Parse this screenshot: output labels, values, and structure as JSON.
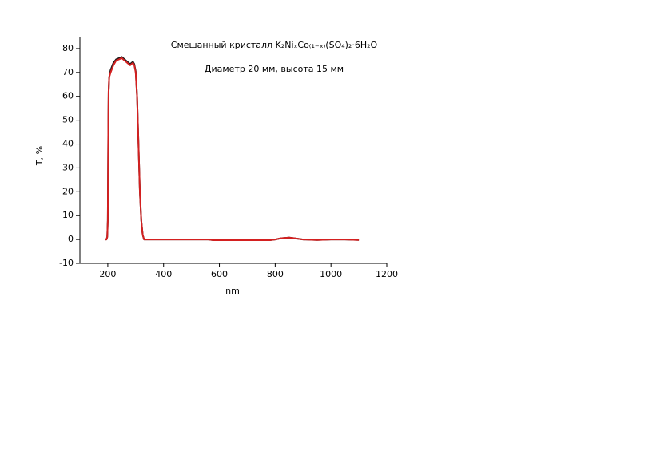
{
  "chart_data": {
    "type": "line",
    "title": "Смешанный кристалл  K₂NiₓCo₍₁₋ₓ₎(SO₄)₂·6H₂O",
    "subtitle": "Диаметр 20 мм, высота 15 мм",
    "x_label": "nm",
    "y_label": "T, %",
    "xlim": [
      100,
      1200
    ],
    "xticks": [
      200,
      400,
      600,
      800,
      1000,
      1200
    ],
    "ylim": [
      -10,
      85
    ],
    "yticks": [
      -10,
      0,
      10,
      20,
      30,
      40,
      50,
      60,
      70,
      80
    ],
    "grid": false,
    "series": [
      {
        "name": "black",
        "color": "#1a1a1a",
        "x": [
          190,
          195,
          198,
          200,
          201,
          202,
          203,
          205,
          210,
          220,
          230,
          240,
          250,
          260,
          270,
          280,
          290,
          295,
          300,
          305,
          310,
          315,
          320,
          325,
          330,
          350,
          400,
          420,
          500,
          560,
          580,
          700,
          780,
          800,
          820,
          850,
          870,
          900,
          950,
          1000,
          1050,
          1100
        ],
        "values": [
          0,
          0,
          1,
          8,
          30,
          50,
          62,
          68,
          71,
          74,
          75.5,
          76,
          76.5,
          75.5,
          74.5,
          73.5,
          74.5,
          73.5,
          70.5,
          60,
          40,
          20,
          8,
          2,
          0,
          0,
          0,
          0,
          0,
          0,
          -0.3,
          -0.3,
          -0.3,
          0,
          0.5,
          0.8,
          0.5,
          0,
          -0.2,
          0,
          0,
          -0.2
        ]
      },
      {
        "name": "red",
        "color": "#d42020",
        "x": [
          190,
          195,
          198,
          200,
          201,
          202,
          203,
          205,
          210,
          220,
          230,
          240,
          250,
          260,
          270,
          280,
          290,
          295,
          300,
          305,
          310,
          315,
          320,
          325,
          330,
          350,
          400,
          420,
          500,
          560,
          580,
          700,
          780,
          800,
          820,
          850,
          870,
          900,
          950,
          1000,
          1050,
          1100
        ],
        "values": [
          0,
          0,
          1,
          8,
          30,
          50,
          62,
          68,
          70,
          73,
          75,
          75.5,
          76,
          75,
          74,
          73,
          74,
          73,
          70,
          60,
          40,
          20,
          8,
          2,
          0,
          0,
          0,
          0,
          0,
          0,
          -0.3,
          -0.3,
          -0.3,
          0,
          0.5,
          0.8,
          0.5,
          0,
          -0.2,
          0,
          0,
          -0.2
        ]
      }
    ]
  }
}
